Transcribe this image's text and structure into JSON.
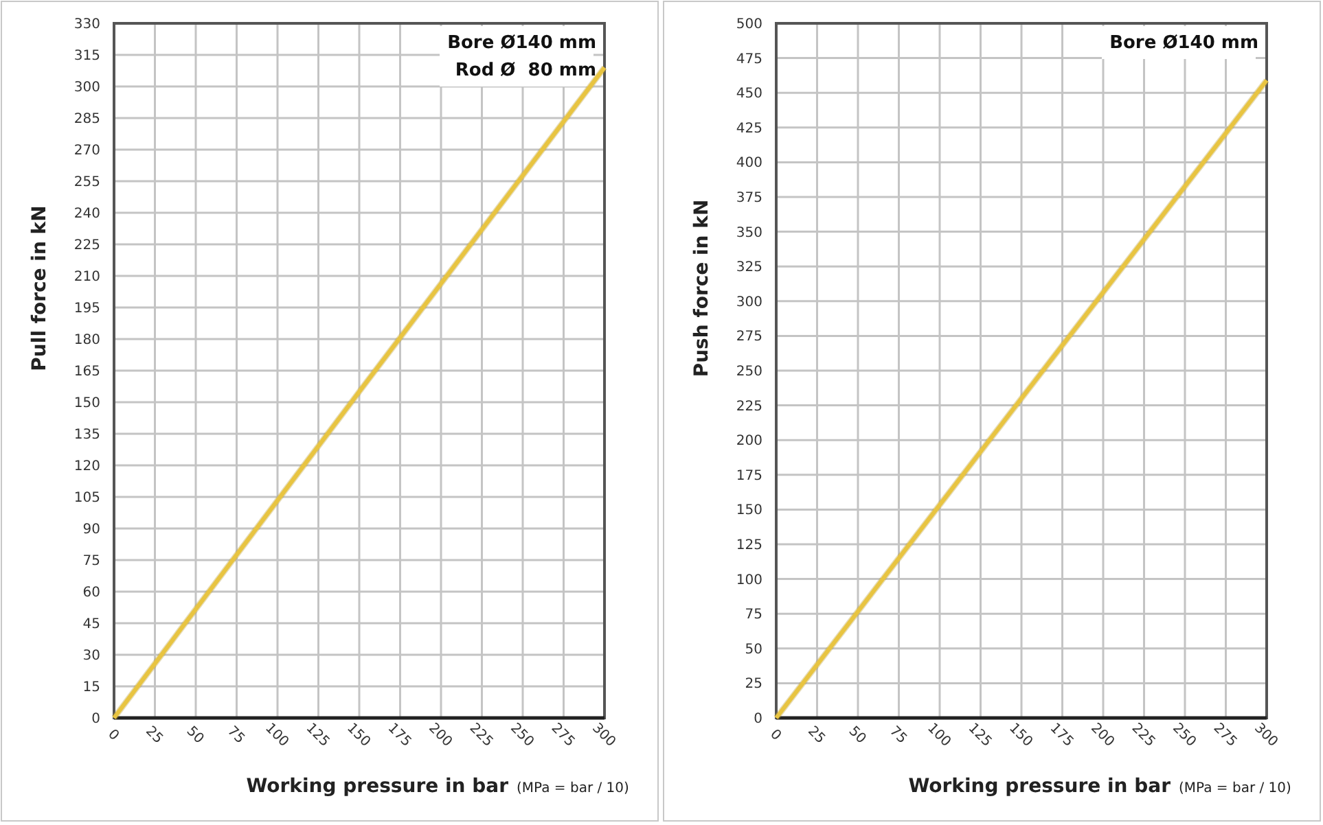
{
  "chart_data": [
    {
      "type": "line",
      "ylabel": "Pull force in kN",
      "xlabel": "Working pressure in bar",
      "annotations": [
        "Bore Ø140 mm",
        "Rod Ø  80 mm",
        "(MPa = bar / 10)"
      ],
      "x": [
        0,
        150,
        300
      ],
      "series": [
        {
          "color": "#e8c441",
          "values": [
            0,
            155,
            309
          ]
        }
      ],
      "xlim": [
        0,
        300
      ],
      "xticks": [
        0,
        25,
        50,
        75,
        100,
        125,
        150,
        175,
        200,
        225,
        250,
        275,
        300
      ],
      "ylim": [
        0,
        330
      ],
      "yticks": [
        0,
        15,
        30,
        45,
        60,
        75,
        90,
        105,
        120,
        135,
        150,
        165,
        180,
        195,
        210,
        225,
        240,
        255,
        270,
        285,
        300,
        315,
        330
      ],
      "grid": true
    },
    {
      "type": "line",
      "ylabel": "Push force  in kN",
      "xlabel": "Working pressure in bar",
      "annotations": [
        "Bore Ø140 mm",
        "(MPa = bar / 10)"
      ],
      "x": [
        0,
        150,
        300
      ],
      "series": [
        {
          "color": "#e8c441",
          "values": [
            0,
            230,
            459
          ]
        }
      ],
      "xlim": [
        0,
        300
      ],
      "xticks": [
        0,
        25,
        50,
        75,
        100,
        125,
        150,
        175,
        200,
        225,
        250,
        275,
        300
      ],
      "ylim": [
        0,
        500
      ],
      "yticks": [
        0,
        25,
        50,
        75,
        100,
        125,
        150,
        175,
        200,
        225,
        250,
        275,
        300,
        325,
        350,
        375,
        400,
        425,
        450,
        475,
        500
      ],
      "grid": true
    }
  ]
}
